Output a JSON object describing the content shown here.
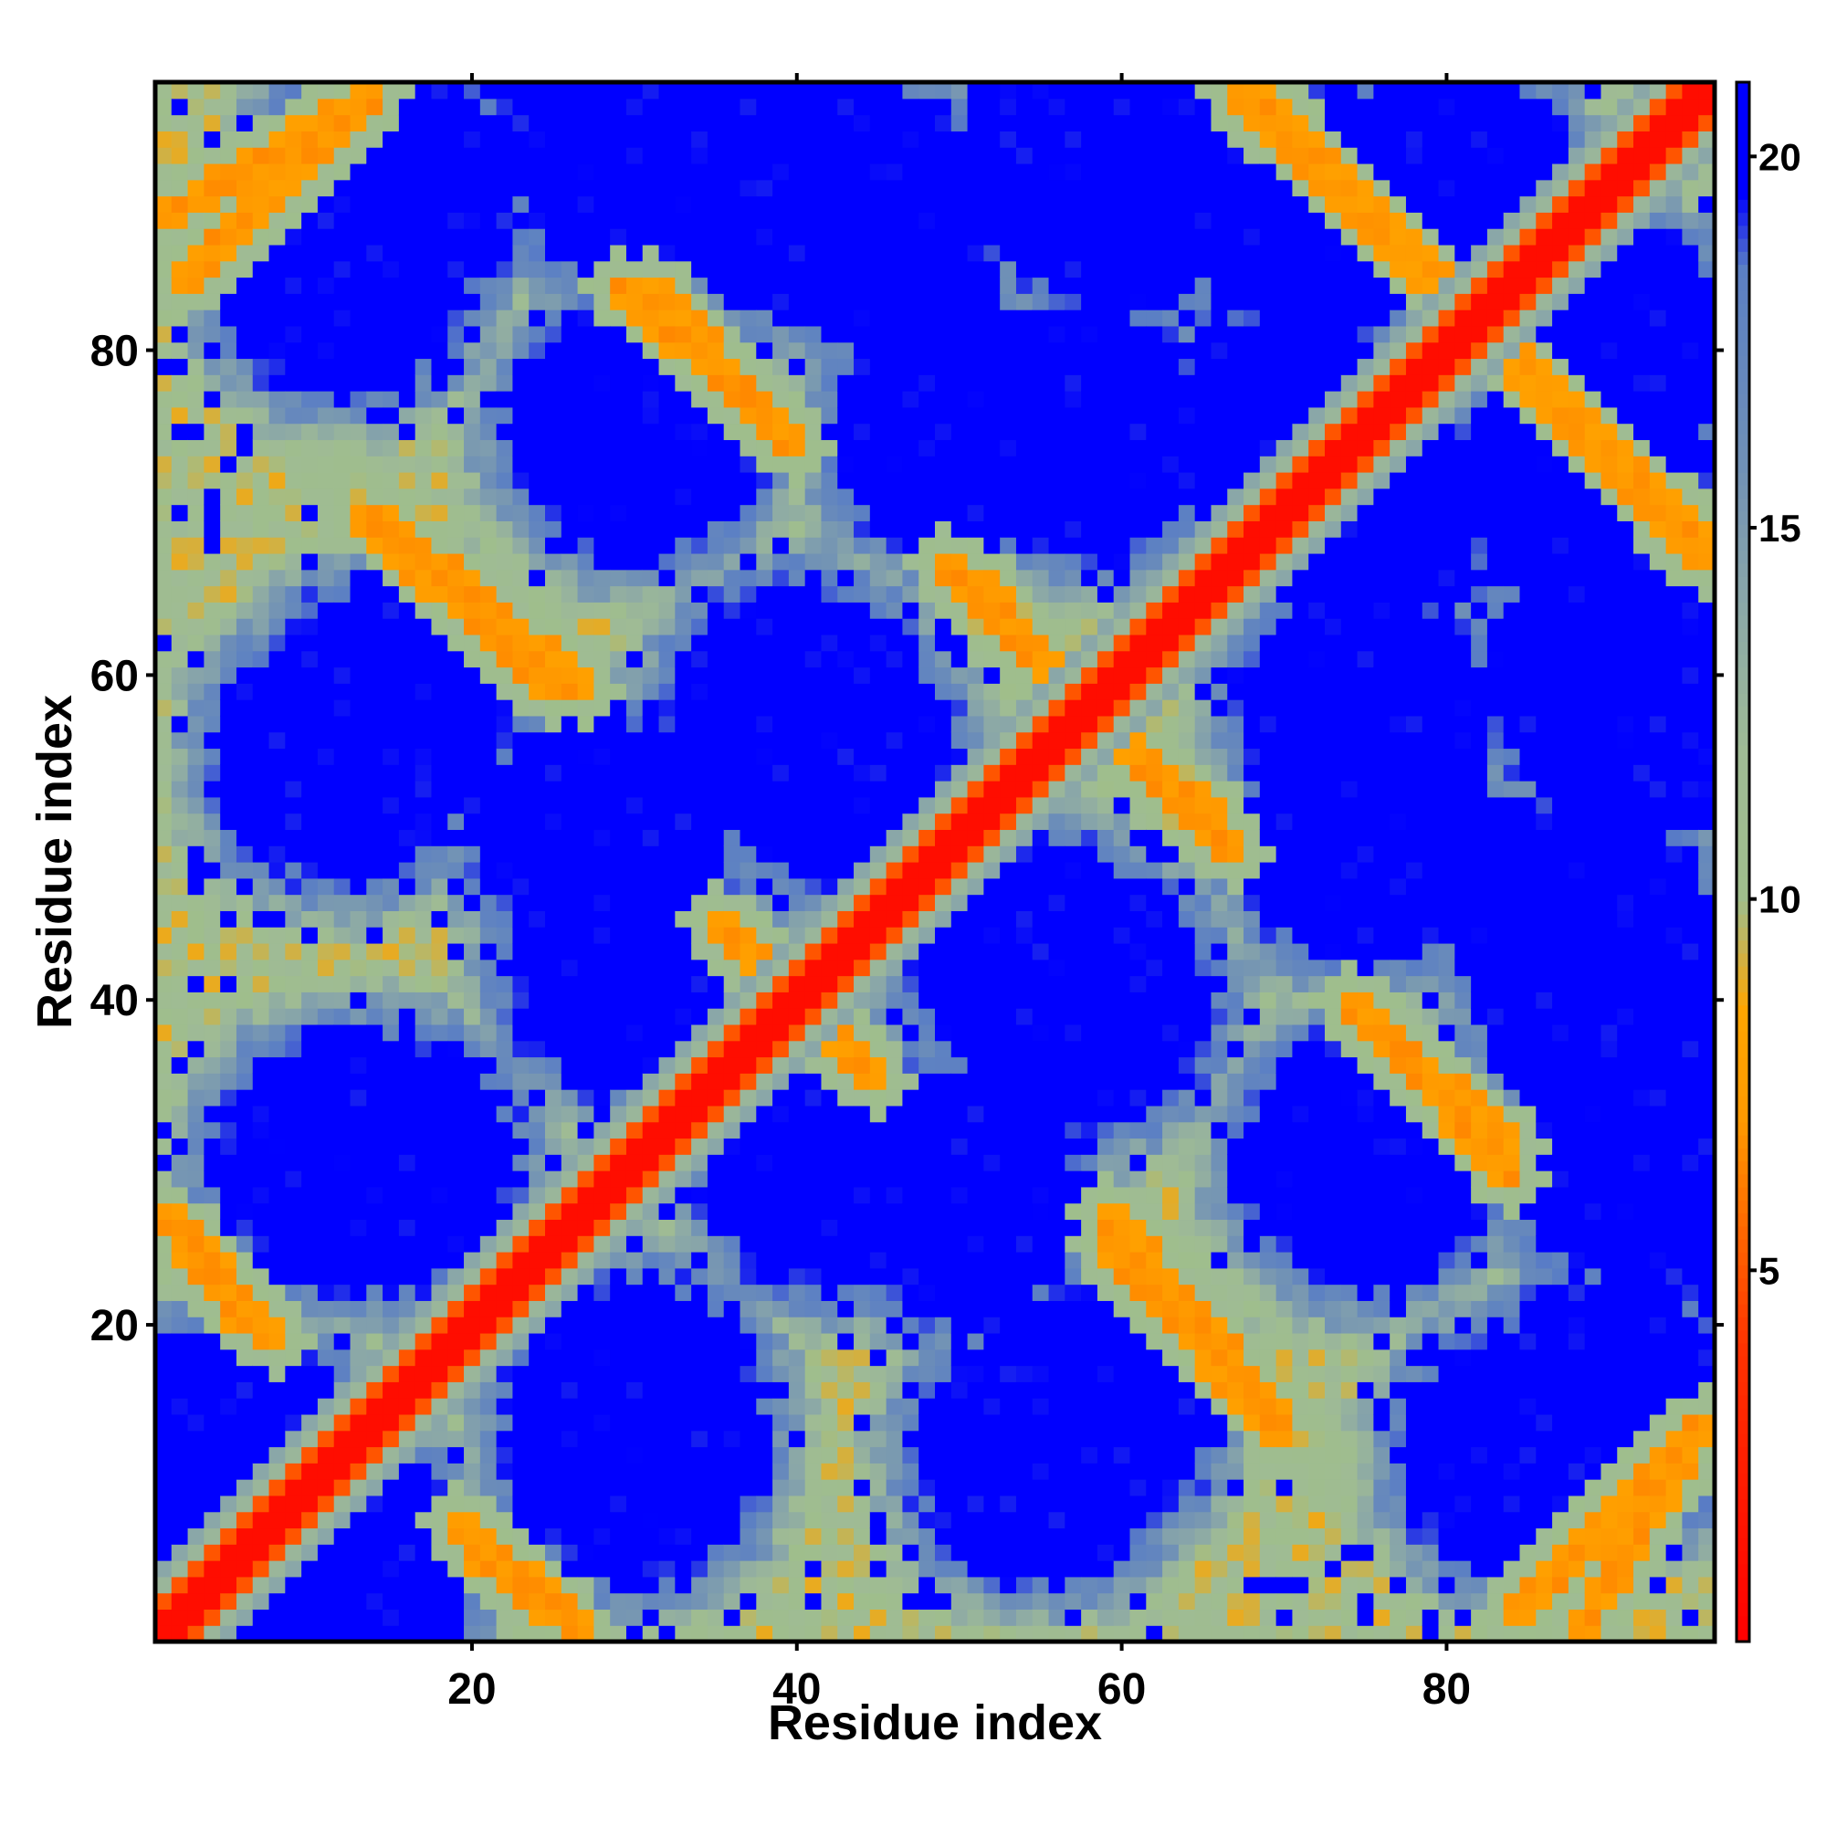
{
  "chart_data": {
    "type": "heatmap",
    "title": "",
    "xlabel": "Residue index",
    "ylabel": "Residue index",
    "xlim": [
      1,
      96
    ],
    "ylim": [
      1,
      96
    ],
    "x_ticks": [
      20,
      40,
      60,
      80
    ],
    "y_ticks": [
      20,
      40,
      60,
      80
    ],
    "n_residues": 96,
    "value_unit": "",
    "colorbar": {
      "range": [
        0,
        21
      ],
      "ticks": [
        5,
        10,
        15,
        20
      ],
      "placement": "right",
      "stops": [
        {
          "value": 0,
          "color": "#ff0000"
        },
        {
          "value": 4,
          "color": "#ff3300"
        },
        {
          "value": 5.5,
          "color": "#ff6600"
        },
        {
          "value": 7,
          "color": "#ff9900"
        },
        {
          "value": 8.5,
          "color": "#ffa500"
        },
        {
          "value": 10,
          "color": "#9fbe8c"
        },
        {
          "value": 12,
          "color": "#9fbb95"
        },
        {
          "value": 14,
          "color": "#8aa7a8"
        },
        {
          "value": 16,
          "color": "#6e8fb7"
        },
        {
          "value": 18.5,
          "color": "#5b7fc4"
        },
        {
          "value": 19.5,
          "color": "#0000ff"
        },
        {
          "value": 21,
          "color": "#0000ff"
        }
      ]
    },
    "structure": {
      "description_of_values": "pairwise residue distances shown as colored cells",
      "main_diagonal": {
        "from": [
          1,
          1
        ],
        "to": [
          96,
          96
        ],
        "value": 1
      },
      "antiparallel_bands": [
        {
          "from": [
            14,
            96
          ],
          "to": [
            2,
            84
          ],
          "value": 6.5
        },
        {
          "from": [
            31,
            84
          ],
          "to": [
            40,
            74
          ],
          "value": 6.5
        },
        {
          "from": [
            14,
            70
          ],
          "to": [
            27,
            59
          ],
          "value": 6.5
        },
        {
          "from": [
            51,
            66
          ],
          "to": [
            57,
            58
          ],
          "value": 6.5
        },
        {
          "from": [
            60,
            56
          ],
          "to": [
            67,
            49
          ],
          "value": 6.5
        },
        {
          "from": [
            36,
            44
          ],
          "to": [
            45,
            35
          ],
          "value": 6.5
        },
        {
          "from": [
            74,
            40
          ],
          "to": [
            84,
            29
          ],
          "value": 6.5
        },
        {
          "from": [
            59,
            25
          ],
          "to": [
            70,
            13
          ],
          "value": 6.5
        },
        {
          "from": [
            2,
            26
          ],
          "to": [
            8,
            19
          ],
          "value": 6.5
        },
        {
          "from": [
            20,
            6
          ],
          "to": [
            27,
            1
          ],
          "value": 6.5
        },
        {
          "from": [
            68,
            96
          ],
          "to": [
            96,
            67
          ],
          "value": 6.5
        },
        {
          "from": [
            88,
            1
          ],
          "to": [
            96,
            14
          ],
          "value": 6.5
        }
      ],
      "blue_domain_centers": [
        [
          15,
          90
        ],
        [
          40,
          90
        ],
        [
          60,
          90
        ],
        [
          80,
          90
        ],
        [
          30,
          75
        ],
        [
          50,
          75
        ],
        [
          70,
          75
        ],
        [
          88,
          72
        ],
        [
          15,
          58
        ],
        [
          40,
          58
        ],
        [
          75,
          58
        ],
        [
          92,
          58
        ],
        [
          30,
          42
        ],
        [
          55,
          42
        ],
        [
          88,
          45
        ],
        [
          15,
          30
        ],
        [
          50,
          28
        ],
        [
          75,
          30
        ],
        [
          92,
          30
        ],
        [
          5,
          12
        ],
        [
          30,
          12
        ],
        [
          55,
          12
        ],
        [
          85,
          12
        ]
      ]
    }
  }
}
